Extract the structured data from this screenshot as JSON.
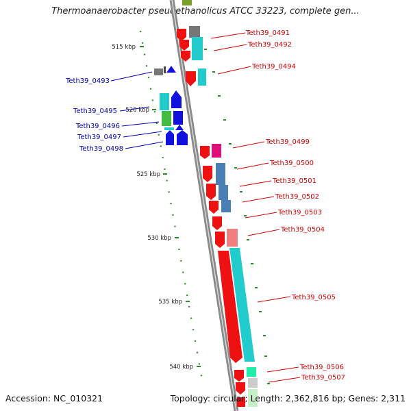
{
  "title": "Thermoanaerobacter pseudethanolicus ATCC 33223, complete gen...",
  "footer": {
    "accession": "Accession: NC_010321",
    "summary": "Topology: circular; Length: 2,362,816 bp; Genes: 2,311"
  },
  "scale_labels": [
    "515 kbp",
    "520 kbp",
    "525 kbp",
    "530 kbp",
    "535 kbp",
    "540 kbp"
  ],
  "gene_labels_right": [
    "Teth39_0491",
    "Teth39_0492",
    "Teth39_0494",
    "Teth39_0499",
    "Teth39_0500",
    "Teth39_0501",
    "Teth39_0502",
    "Teth39_0503",
    "Teth39_0504",
    "Teth39_0505",
    "Teth39_0506",
    "Teth39_0507"
  ],
  "gene_labels_left": [
    "Teth39_0493",
    "Teth39_0495",
    "Teth39_0496",
    "Teth39_0497",
    "Teth39_0498"
  ],
  "colors": {
    "forward_label": "#cc0000",
    "reverse_label": "#0000aa",
    "backbone": "#8a8a8a",
    "tick": "#2a8a2a",
    "cds_red": "#ee1111",
    "cds_blue": "#1111dd",
    "cyan": "#22cccc",
    "steel": "#4a7fb5",
    "magenta": "#e0107a",
    "salmon": "#f08080",
    "gray": "#777777",
    "green": "#44bb44"
  }
}
